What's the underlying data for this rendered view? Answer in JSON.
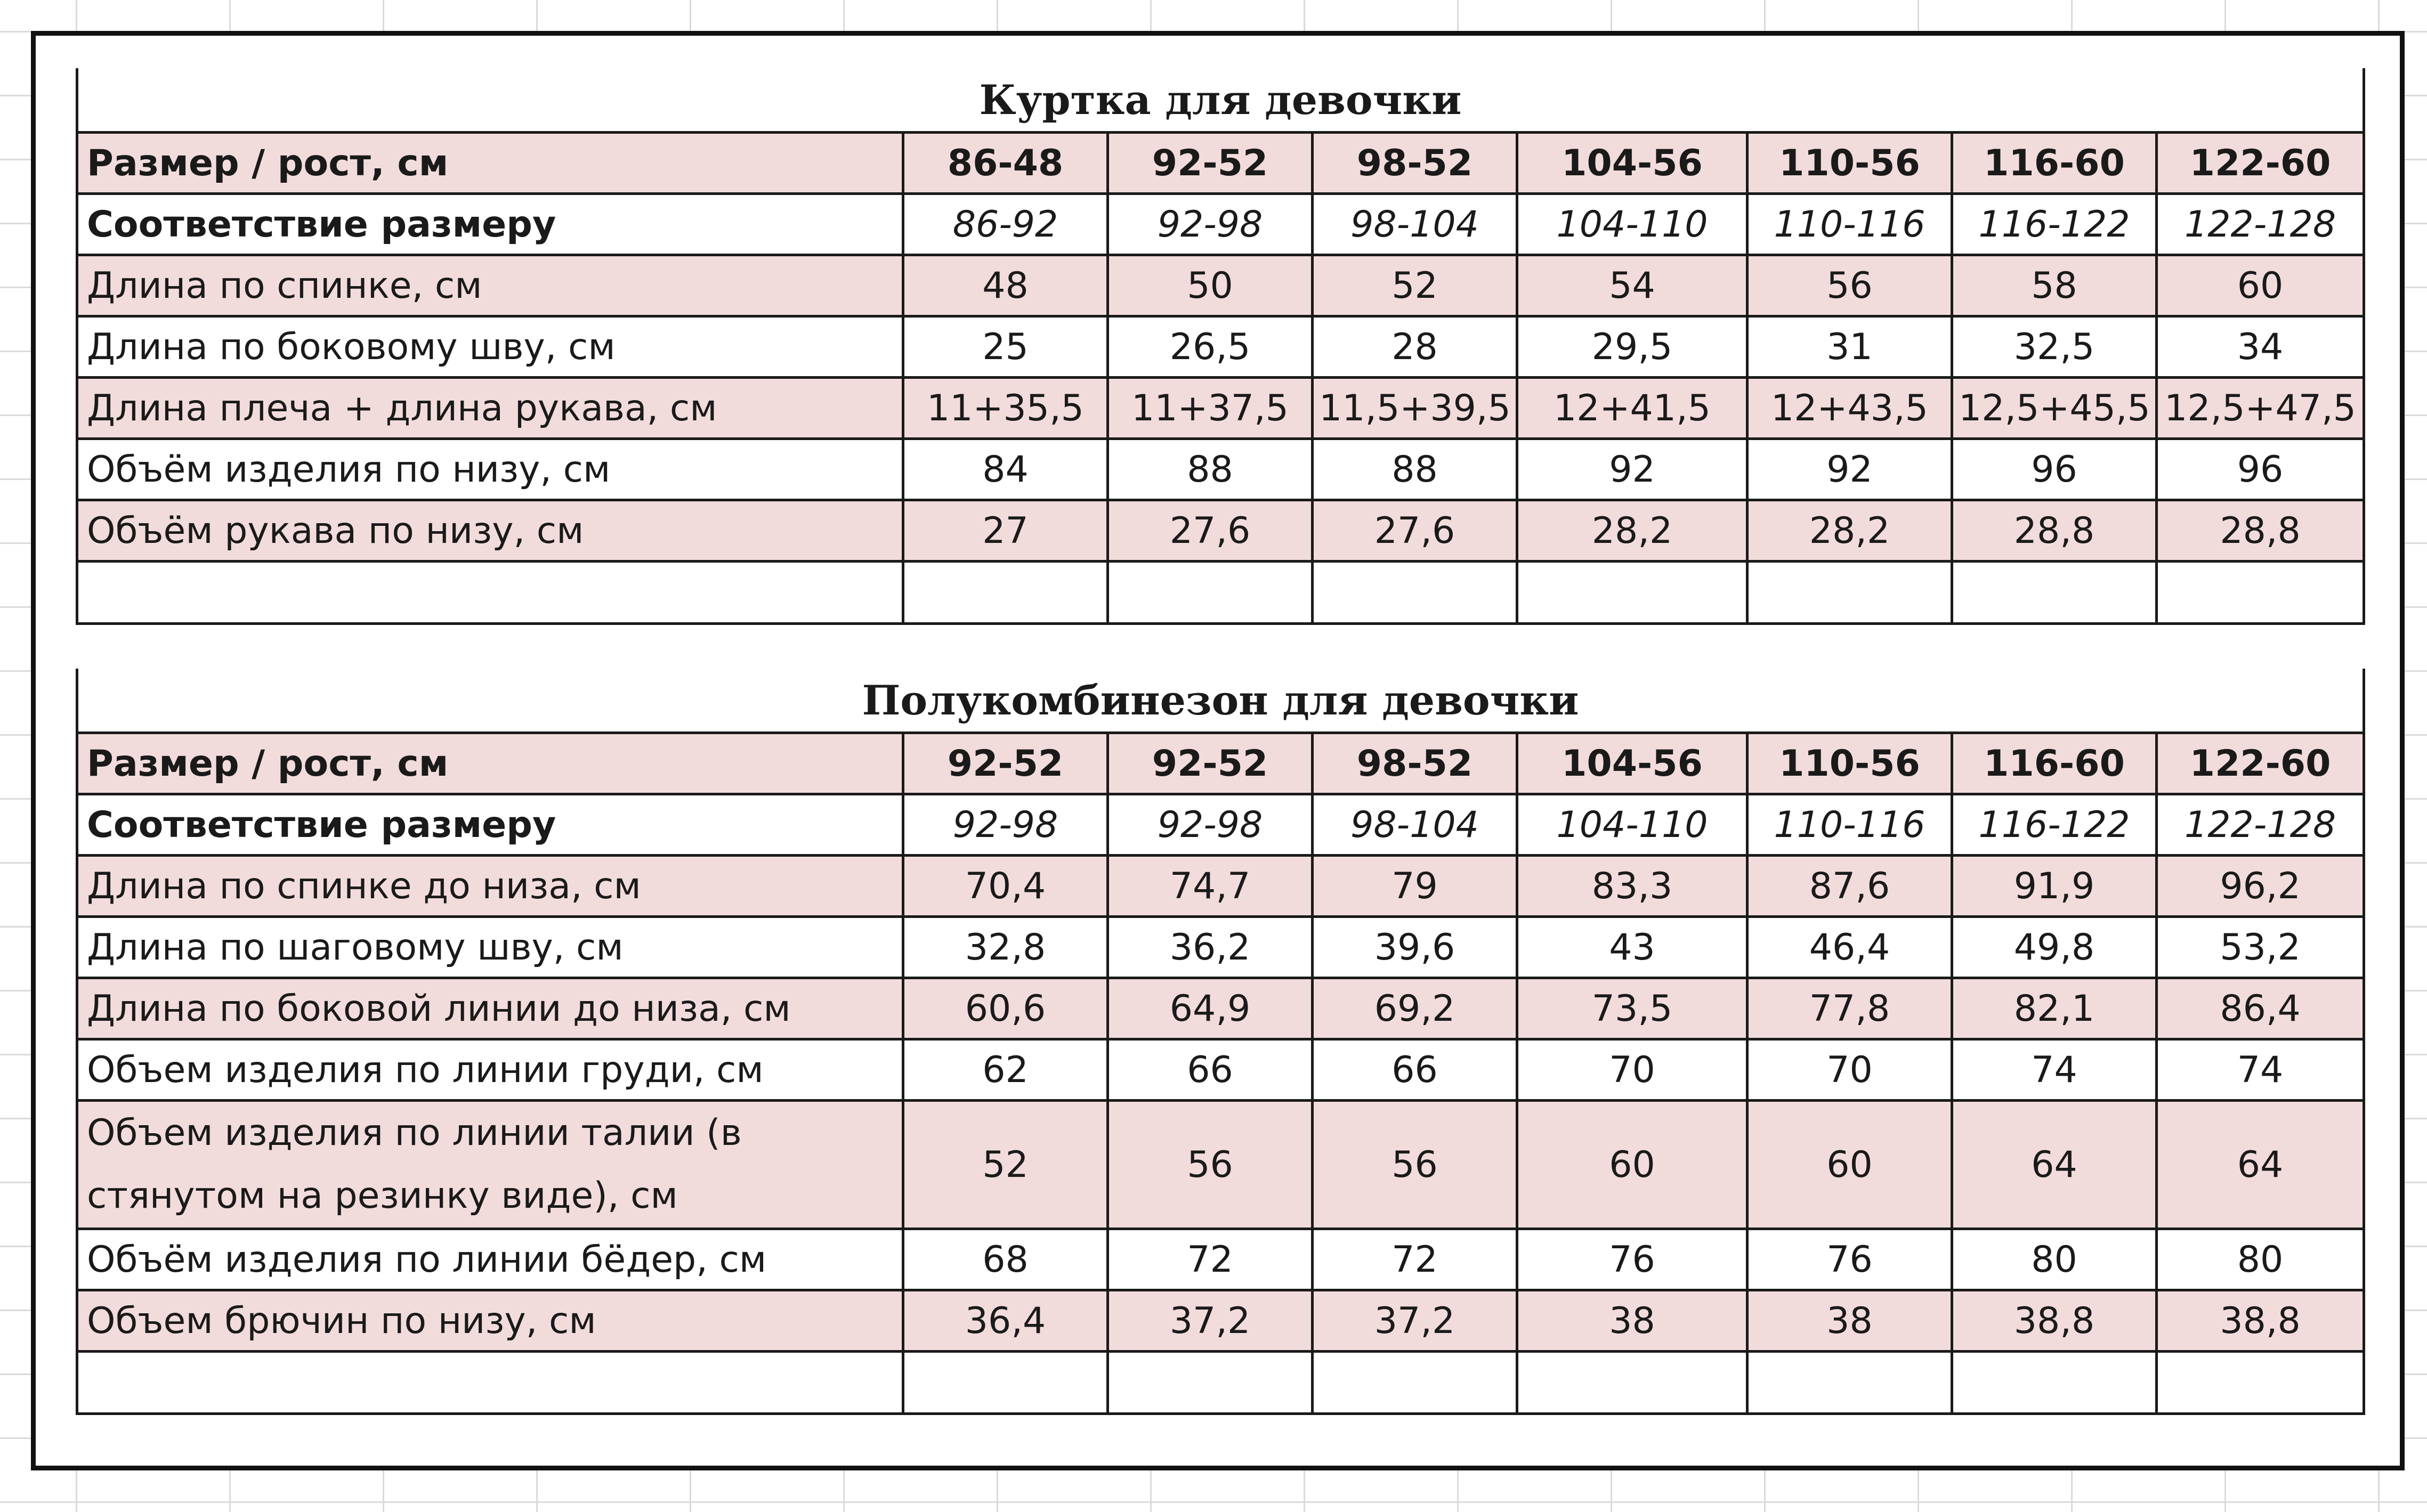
{
  "tables": [
    {
      "title": "Куртка для девочки",
      "header": {
        "label": "Размер / рост, см",
        "cols": [
          "86-48",
          "92-52",
          "98-52",
          "104-56",
          "110-56",
          "116-60",
          "122-60"
        ]
      },
      "correspondence": {
        "label": "Соответствие размеру",
        "cols": [
          "86-92",
          "92-98",
          "98-104",
          "104-110",
          "110-116",
          "116-122",
          "122-128"
        ]
      },
      "rows": [
        {
          "label": "Длина по спинке, см",
          "values": [
            "48",
            "50",
            "52",
            "54",
            "56",
            "58",
            "60"
          ]
        },
        {
          "label": "Длина по боковому шву, см",
          "values": [
            "25",
            "26,5",
            "28",
            "29,5",
            "31",
            "32,5",
            "34"
          ]
        },
        {
          "label": "Длина плеча + длина рукава, см",
          "values": [
            "11+35,5",
            "11+37,5",
            "11,5+39,5",
            "12+41,5",
            "12+43,5",
            "12,5+45,5",
            "12,5+47,5"
          ]
        },
        {
          "label": "Объём изделия по низу, см",
          "values": [
            "84",
            "88",
            "88",
            "92",
            "92",
            "96",
            "96"
          ]
        },
        {
          "label": "Объём рукава по низу, см",
          "values": [
            "27",
            "27,6",
            "27,6",
            "28,2",
            "28,2",
            "28,8",
            "28,8"
          ]
        }
      ]
    },
    {
      "title": "Полукомбинезон для девочки",
      "header": {
        "label": "Размер / рост, см",
        "cols": [
          "92-52",
          "92-52",
          "98-52",
          "104-56",
          "110-56",
          "116-60",
          "122-60"
        ]
      },
      "correspondence": {
        "label": "Соответствие размеру",
        "cols": [
          "92-98",
          "92-98",
          "98-104",
          "104-110",
          "110-116",
          "116-122",
          "122-128"
        ]
      },
      "rows": [
        {
          "label": "Длина по спинке до низа, см",
          "values": [
            "70,4",
            "74,7",
            "79",
            "83,3",
            "87,6",
            "91,9",
            "96,2"
          ]
        },
        {
          "label": "Длина по шаговому шву, см",
          "values": [
            "32,8",
            "36,2",
            "39,6",
            "43",
            "46,4",
            "49,8",
            "53,2"
          ]
        },
        {
          "label": "Длина по боковой линии до низа, см",
          "values": [
            "60,6",
            "64,9",
            "69,2",
            "73,5",
            "77,8",
            "82,1",
            "86,4"
          ]
        },
        {
          "label": "Объем изделия по линии груди, см",
          "values": [
            "62",
            "66",
            "66",
            "70",
            "70",
            "74",
            "74"
          ]
        },
        {
          "label": "Объем изделия по линии талии (в стянутом на резинку виде), см",
          "values": [
            "52",
            "56",
            "56",
            "60",
            "60",
            "64",
            "64"
          ]
        },
        {
          "label": "Объём изделия по линии бёдер, см",
          "values": [
            "68",
            "72",
            "72",
            "76",
            "76",
            "80",
            "80"
          ]
        },
        {
          "label": "Объем брючин по низу, см",
          "values": [
            "36,4",
            "37,2",
            "37,2",
            "38",
            "38",
            "38,8",
            "38,8"
          ]
        }
      ]
    }
  ],
  "colors": {
    "row_highlight": "#f2dcdb",
    "border": "#1a1a1a",
    "grid": "#dadada"
  }
}
